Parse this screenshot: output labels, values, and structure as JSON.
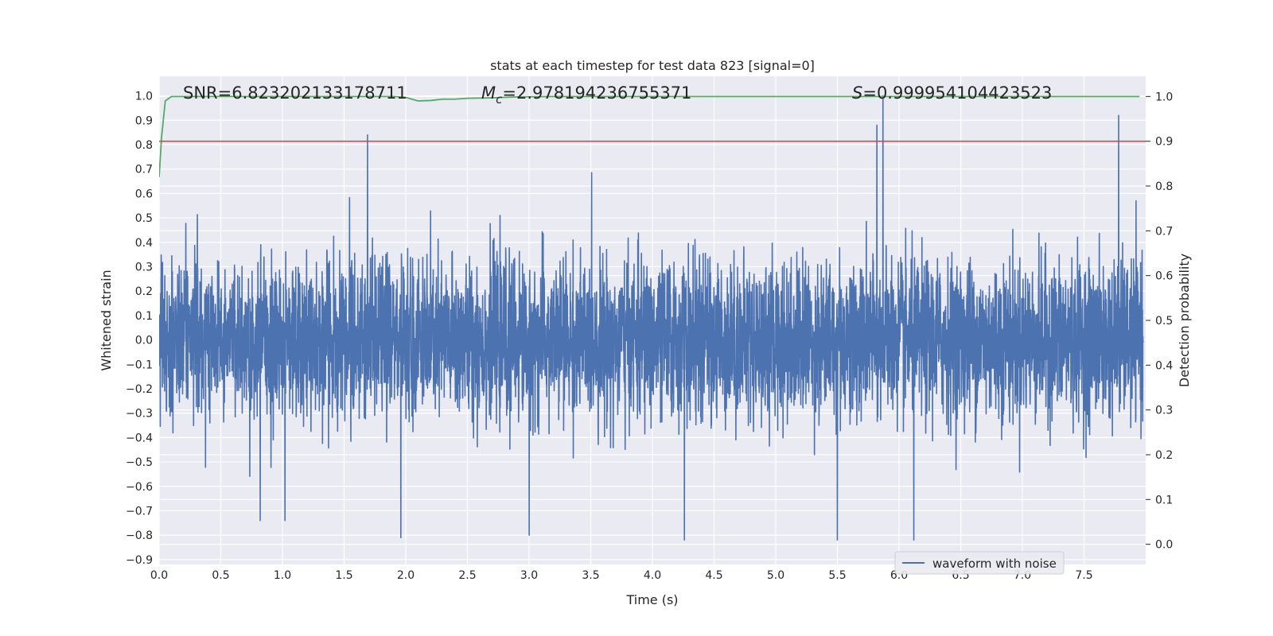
{
  "chart_data": {
    "type": "line",
    "title": "stats at each timestep for test data 823 [signal=0]",
    "xlabel": "Time (s)",
    "ylabel": "Whitened strain",
    "y2label": "Detection probability",
    "xlim": [
      0.0,
      8.0
    ],
    "ylim": [
      -0.92,
      1.08
    ],
    "y2lim": [
      -0.045,
      1.045
    ],
    "x_ticks": [
      "0.0",
      "0.5",
      "1.0",
      "1.5",
      "2.0",
      "2.5",
      "3.0",
      "3.5",
      "4.0",
      "4.5",
      "5.0",
      "5.5",
      "6.0",
      "6.5",
      "7.0",
      "7.5"
    ],
    "y_ticks": [
      "1.0",
      "0.9",
      "0.8",
      "0.7",
      "0.6",
      "0.5",
      "0.4",
      "0.3",
      "0.2",
      "0.1",
      "0.0",
      "−0.1",
      "−0.2",
      "−0.3",
      "−0.4",
      "−0.5",
      "−0.6",
      "−0.7",
      "−0.8",
      "−0.9"
    ],
    "y2_ticks": [
      "1.0",
      "0.9",
      "0.8",
      "0.7",
      "0.6",
      "0.5",
      "0.4",
      "0.3",
      "0.2",
      "0.1",
      "0.0"
    ],
    "grid": true,
    "legend_position": "bottom-right",
    "annotations": {
      "snr": "SNR=6.823202133178711",
      "mc_symbol": "M",
      "mc_sub": "c",
      "mc_value": "=2.978194236755371",
      "s_symbol": "S",
      "s_value": "=0.999954104423523"
    },
    "series": [
      {
        "name": "waveform with noise",
        "axis": "left",
        "color": "#4c72b0",
        "noise_sigma": 0.16,
        "spikes": [
          {
            "x": 1.69,
            "y": 0.84
          },
          {
            "x": 5.82,
            "y": 0.88
          },
          {
            "x": 5.87,
            "y": 1.0
          },
          {
            "x": 7.78,
            "y": 0.92
          },
          {
            "x": 1.96,
            "y": -0.81
          },
          {
            "x": 3.0,
            "y": -0.8
          },
          {
            "x": 4.26,
            "y": -0.82
          },
          {
            "x": 5.5,
            "y": -0.82
          },
          {
            "x": 6.12,
            "y": -0.82
          },
          {
            "x": 0.82,
            "y": -0.74
          },
          {
            "x": 1.02,
            "y": -0.74
          }
        ]
      },
      {
        "axis": "right",
        "color": "#55a868",
        "x": [
          0.0,
          0.02,
          0.05,
          0.1,
          0.15,
          1.9,
          2.0,
          2.1,
          2.2,
          2.3,
          2.4,
          2.5,
          2.7,
          2.9,
          3.2,
          7.95
        ],
        "y": [
          0.82,
          0.91,
          0.99,
          1.0,
          1.0,
          1.0,
          0.998,
          0.99,
          0.991,
          0.994,
          0.994,
          0.996,
          0.997,
          0.999,
          1.0,
          1.0
        ]
      },
      {
        "axis": "right",
        "color": "#c44e52",
        "type": "hline",
        "y": 0.9
      }
    ]
  }
}
